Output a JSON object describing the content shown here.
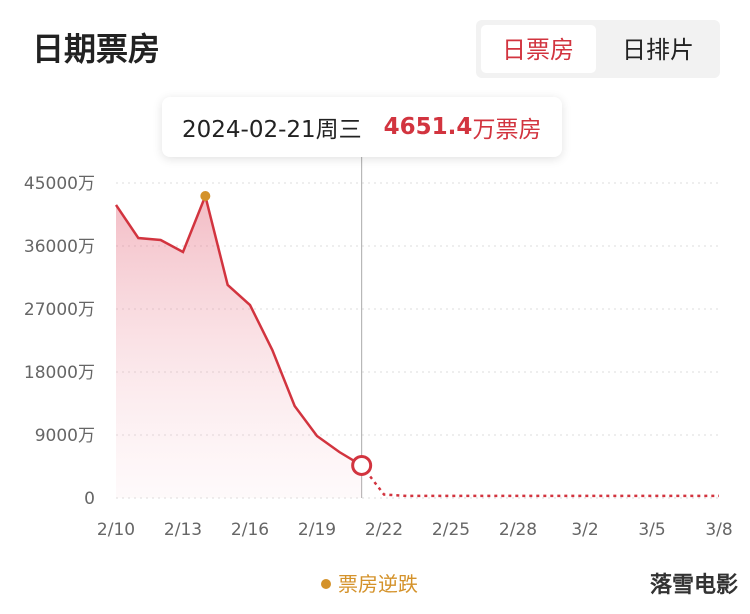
{
  "title": "日期票房",
  "tabs": [
    "日票房",
    "日排片"
  ],
  "watermark": "落雪电影",
  "chart_data": {
    "type": "line",
    "color": "#d2343f",
    "categories": [
      "2/10",
      null,
      null,
      "2/13",
      null,
      null,
      "2/16",
      null,
      null,
      "2/19",
      null,
      null,
      "2/22",
      null,
      null,
      "2/25",
      null,
      null,
      "2/28",
      null,
      null,
      "3/2",
      null,
      null,
      "3/5",
      null,
      null,
      "3/8"
    ],
    "values": [
      41860,
      37140,
      36860,
      35140,
      43140,
      30430,
      27570,
      21140,
      13140,
      8860,
      6570,
      4651.4,
      null,
      null,
      null,
      null,
      null,
      null,
      null,
      null,
      null,
      null,
      null,
      null,
      null,
      null,
      null,
      null
    ],
    "projected_values": [
      null,
      null,
      null,
      null,
      null,
      null,
      null,
      null,
      null,
      null,
      null,
      4651.4,
      500,
      300,
      300,
      300,
      300,
      300,
      300,
      300,
      300,
      300,
      300,
      300,
      300,
      300,
      300,
      300
    ],
    "ylim": [
      0,
      45000
    ],
    "yticks": [
      0,
      {
        "value": 9000,
        "label": "9000万"
      },
      {
        "value": 18000,
        "label": "18000万"
      },
      {
        "value": 27000,
        "label": "27000万"
      },
      {
        "value": 36000,
        "label": "36000万"
      },
      {
        "value": 45000,
        "label": "45000万"
      }
    ],
    "grid": true,
    "tooltip": {
      "label": "2024-02-21周三",
      "unit": "万票房"
    },
    "highlight": {
      "label": "票房逆跌",
      "color": "#d4922a"
    }
  }
}
